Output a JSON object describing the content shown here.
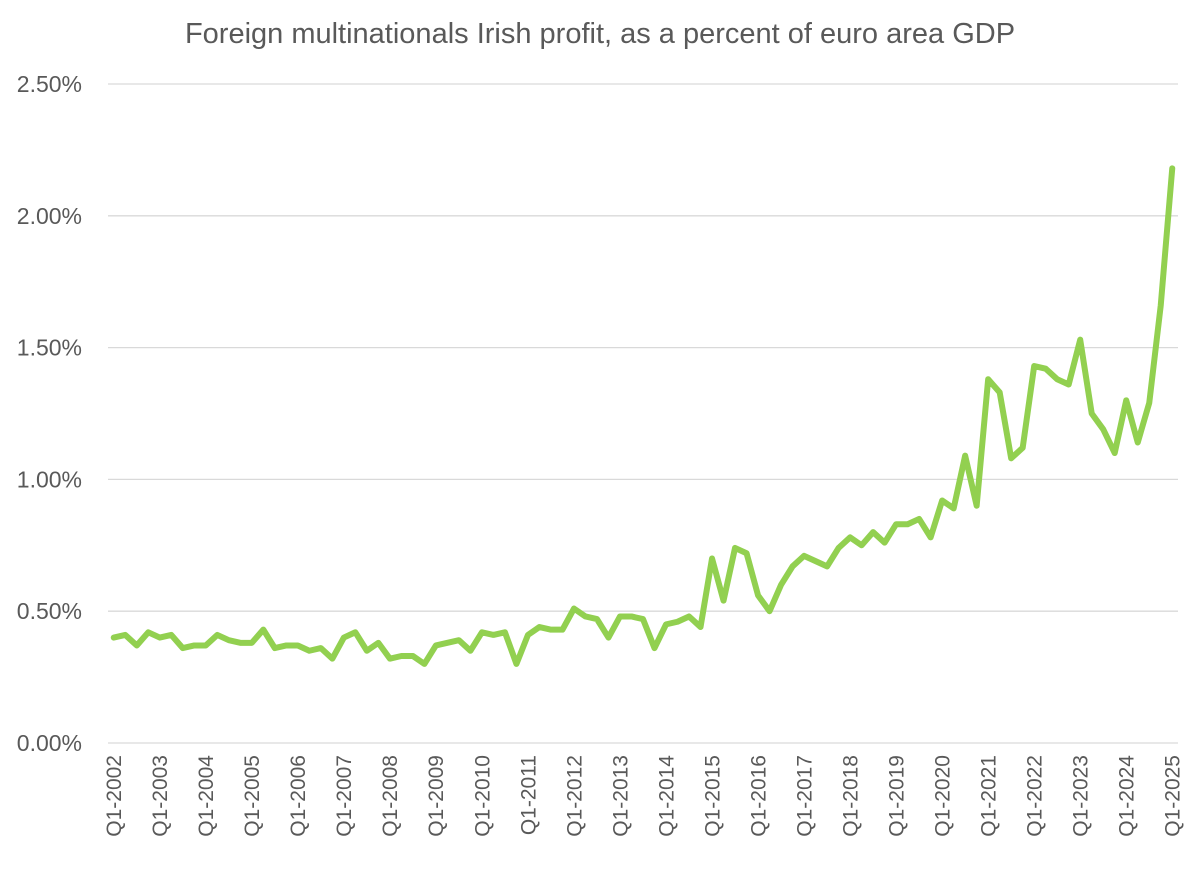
{
  "chart_data": {
    "type": "line",
    "title": "Foreign multinationals Irish profit, as a percent of euro area GDP",
    "xlabel": "",
    "ylabel": "",
    "ylim": [
      0,
      0.025
    ],
    "yticks": [
      0,
      0.005,
      0.01,
      0.015,
      0.02,
      0.025
    ],
    "ytick_labels": [
      "0.00%",
      "0.50%",
      "1.00%",
      "1.50%",
      "2.00%",
      "2.50%"
    ],
    "xtick_labels": [
      "Q1-2002",
      "Q1-2003",
      "Q1-2004",
      "Q1-2005",
      "Q1-2006",
      "Q1-2007",
      "Q1-2008",
      "Q1-2009",
      "Q1-2010",
      "Q1-2011",
      "Q1-2012",
      "Q1-2013",
      "Q1-2014",
      "Q1-2015",
      "Q1-2016",
      "Q1-2017",
      "Q1-2018",
      "Q1-2019",
      "Q1-2020",
      "Q1-2021",
      "Q1-2022",
      "Q1-2023",
      "Q1-2024",
      "Q1-2025"
    ],
    "grid": true,
    "legend": "none",
    "series": [
      {
        "name": "Foreign multinationals Irish profit",
        "color": "#92d050",
        "values": [
          0.004,
          0.0041,
          0.0037,
          0.0042,
          0.004,
          0.0041,
          0.0036,
          0.0037,
          0.0037,
          0.0041,
          0.0039,
          0.0038,
          0.0038,
          0.0043,
          0.0036,
          0.0037,
          0.0037,
          0.0035,
          0.0036,
          0.0032,
          0.004,
          0.0042,
          0.0035,
          0.0038,
          0.0032,
          0.0033,
          0.0033,
          0.003,
          0.0037,
          0.0038,
          0.0039,
          0.0035,
          0.0042,
          0.0041,
          0.0042,
          0.003,
          0.0041,
          0.0044,
          0.0043,
          0.0043,
          0.0051,
          0.0048,
          0.0047,
          0.004,
          0.0048,
          0.0048,
          0.0047,
          0.0036,
          0.0045,
          0.0046,
          0.0048,
          0.0044,
          0.007,
          0.0054,
          0.0074,
          0.0072,
          0.0056,
          0.005,
          0.006,
          0.0067,
          0.0071,
          0.0069,
          0.0067,
          0.0074,
          0.0078,
          0.0075,
          0.008,
          0.0076,
          0.0083,
          0.0083,
          0.0085,
          0.0078,
          0.0092,
          0.0089,
          0.0109,
          0.009,
          0.0138,
          0.0133,
          0.0108,
          0.0112,
          0.0143,
          0.0142,
          0.0138,
          0.0136,
          0.0153,
          0.0125,
          0.0119,
          0.011,
          0.013,
          0.0114,
          0.0129,
          0.0166,
          0.0218
        ]
      }
    ]
  }
}
